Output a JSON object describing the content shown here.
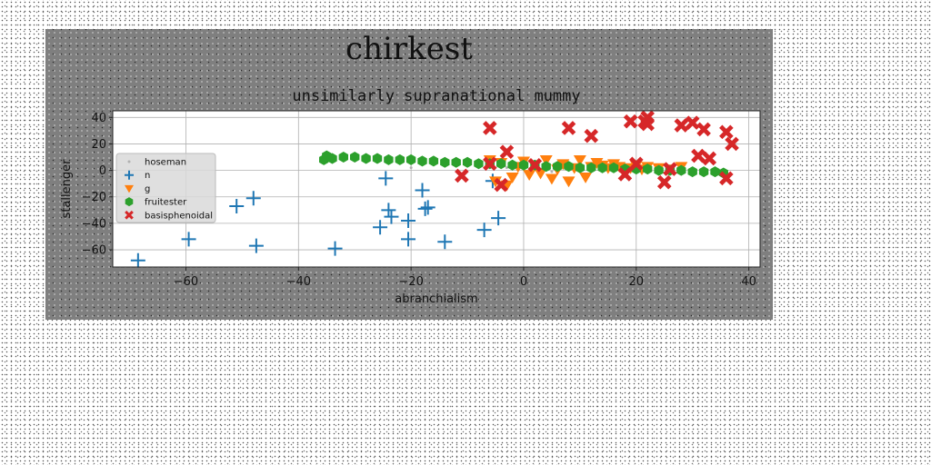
{
  "chart_data": {
    "type": "scatter",
    "suptitle": "chirkest",
    "title": "unsimilarly supranational mummy",
    "xlabel": "abranchialism",
    "ylabel": "stallenger",
    "xlim": [
      -73,
      42
    ],
    "ylim": [
      -73,
      45
    ],
    "xticks": [
      -60,
      -40,
      -20,
      0,
      20,
      40
    ],
    "yticks": [
      -60,
      -40,
      -20,
      0,
      20,
      40
    ],
    "xtick_labels": [
      "−60",
      "−40",
      "−20",
      "0",
      "20",
      "40"
    ],
    "ytick_labels": [
      "−60",
      "−40",
      "−20",
      "0",
      "20",
      "40"
    ],
    "grid": true,
    "legend_position": "center-left",
    "colors": {
      "hoseman": "#b0b0b0",
      "n": "#1f77b4",
      "g": "#ff7f0e",
      "fruitester": "#2ca02c",
      "basisphenoidal": "#d62728",
      "plot_bg": "#ffffff",
      "figure_bg": "#7f7f7f"
    },
    "series": [
      {
        "name": "hoseman",
        "marker": "point",
        "points": [
          [
            -3,
            2
          ],
          [
            5,
            -1
          ],
          [
            12,
            1
          ],
          [
            20,
            3
          ],
          [
            28,
            0
          ],
          [
            -20,
            2
          ]
        ]
      },
      {
        "name": "n",
        "marker": "plus",
        "points": [
          [
            -68.5,
            -68
          ],
          [
            -59.5,
            -52
          ],
          [
            -51,
            -27
          ],
          [
            -48,
            -21
          ],
          [
            -47.5,
            -57
          ],
          [
            -33.5,
            -59
          ],
          [
            -25.5,
            -43
          ],
          [
            -24.5,
            -6
          ],
          [
            -24,
            -30
          ],
          [
            -23.5,
            -35
          ],
          [
            -20.5,
            -38
          ],
          [
            -20.5,
            -52
          ],
          [
            -18,
            -15
          ],
          [
            -17.5,
            -29
          ],
          [
            -17,
            -28
          ],
          [
            -14,
            -54
          ],
          [
            -7,
            -45
          ],
          [
            -5.5,
            -8
          ],
          [
            -4.5,
            -36
          ]
        ]
      },
      {
        "name": "g",
        "marker": "triangle-down",
        "points": [
          [
            -6,
            8
          ],
          [
            -5,
            -8
          ],
          [
            -4,
            6
          ],
          [
            -3,
            -11
          ],
          [
            -2,
            -5
          ],
          [
            -1,
            3
          ],
          [
            0,
            7
          ],
          [
            1,
            -3
          ],
          [
            2,
            4
          ],
          [
            3,
            -2
          ],
          [
            4,
            8
          ],
          [
            5,
            -6
          ],
          [
            6,
            1
          ],
          [
            7,
            5
          ],
          [
            8,
            -8
          ],
          [
            9,
            2
          ],
          [
            10,
            8
          ],
          [
            11,
            -5
          ],
          [
            12,
            3
          ],
          [
            13,
            6
          ],
          [
            14,
            4
          ],
          [
            15,
            2
          ],
          [
            16,
            5
          ],
          [
            17,
            3
          ],
          [
            18,
            -1
          ],
          [
            19,
            2
          ],
          [
            20,
            4
          ],
          [
            21,
            1
          ],
          [
            22,
            3
          ],
          [
            24,
            2
          ],
          [
            26,
            1
          ],
          [
            28,
            3
          ]
        ]
      },
      {
        "name": "fruitester",
        "marker": "hexagon",
        "points": [
          [
            -35.5,
            8
          ],
          [
            -35,
            11
          ],
          [
            -34,
            9
          ],
          [
            -32,
            10
          ],
          [
            -30,
            10
          ],
          [
            -28,
            9
          ],
          [
            -26,
            9
          ],
          [
            -24,
            8
          ],
          [
            -22,
            8
          ],
          [
            -20,
            8
          ],
          [
            -18,
            7
          ],
          [
            -16,
            7
          ],
          [
            -14,
            6
          ],
          [
            -12,
            6
          ],
          [
            -10,
            6
          ],
          [
            -8,
            5
          ],
          [
            -6,
            5
          ],
          [
            -4,
            5
          ],
          [
            -2,
            4
          ],
          [
            0,
            4
          ],
          [
            2,
            4
          ],
          [
            4,
            3
          ],
          [
            6,
            3
          ],
          [
            8,
            3
          ],
          [
            10,
            2
          ],
          [
            12,
            2
          ],
          [
            14,
            2
          ],
          [
            16,
            2
          ],
          [
            18,
            1
          ],
          [
            20,
            1
          ],
          [
            22,
            1
          ],
          [
            24,
            0
          ],
          [
            26,
            0
          ],
          [
            28,
            0
          ],
          [
            30,
            -1
          ],
          [
            32,
            -1
          ],
          [
            34,
            -1
          ],
          [
            35.5,
            -2
          ]
        ]
      },
      {
        "name": "basisphenoidal",
        "marker": "x",
        "points": [
          [
            -11,
            -4
          ],
          [
            -6,
            32
          ],
          [
            -6,
            5
          ],
          [
            -4,
            -11
          ],
          [
            -3,
            14
          ],
          [
            2,
            4
          ],
          [
            8,
            32
          ],
          [
            12,
            26
          ],
          [
            18,
            -3
          ],
          [
            19,
            37
          ],
          [
            20,
            5
          ],
          [
            21.5,
            37
          ],
          [
            22,
            40
          ],
          [
            22,
            35
          ],
          [
            25,
            -9
          ],
          [
            26,
            1
          ],
          [
            28,
            34
          ],
          [
            30,
            36
          ],
          [
            31,
            11
          ],
          [
            32,
            31
          ],
          [
            33,
            9
          ],
          [
            36,
            29
          ],
          [
            36,
            -6
          ],
          [
            37,
            20
          ]
        ]
      }
    ]
  }
}
